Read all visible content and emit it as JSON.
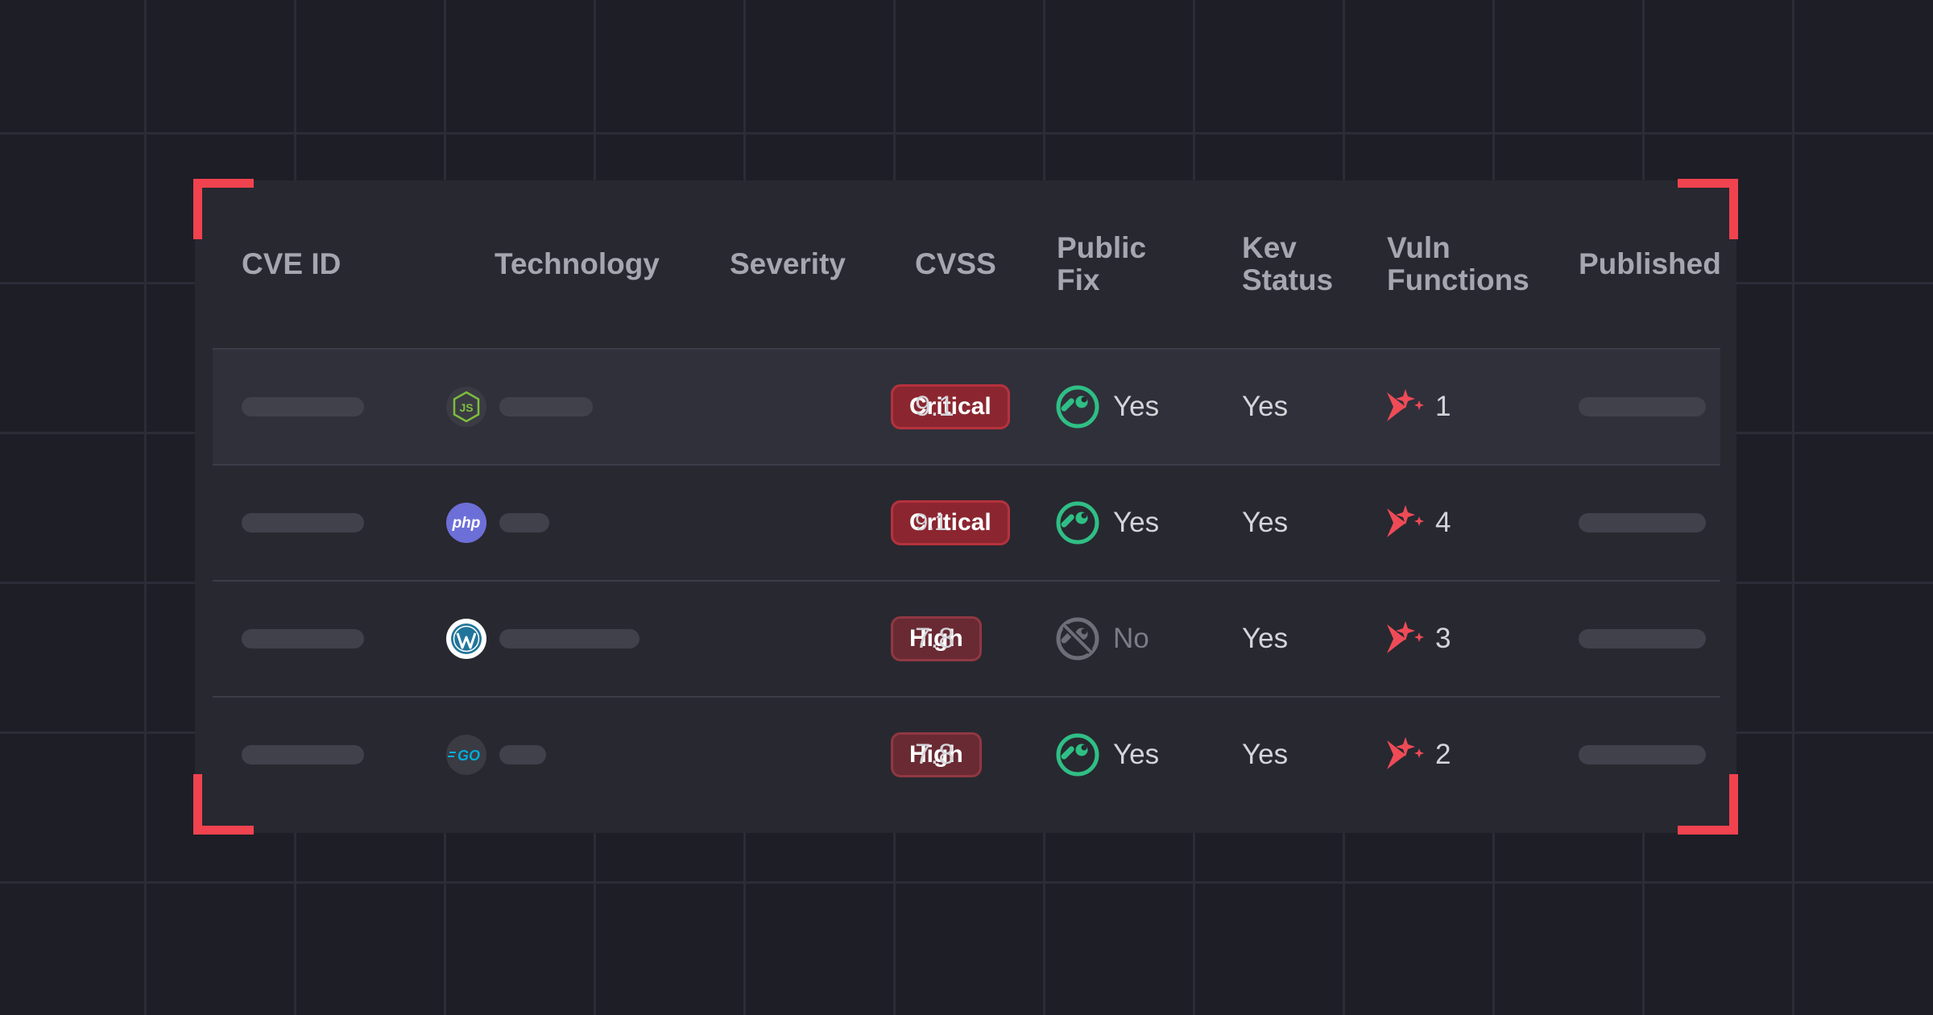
{
  "table": {
    "headers": {
      "cve_id": "CVE ID",
      "technology": "Technology",
      "severity": "Severity",
      "cvss": "CVSS",
      "public_fix": [
        "Public",
        "Fix"
      ],
      "kev_status": [
        "Kev",
        "Status"
      ],
      "vuln_functions": [
        "Vuln",
        "Functions"
      ],
      "published": "Published"
    },
    "rows": [
      {
        "technology_icon": "nodejs-icon",
        "severity": "Critical",
        "cvss": "9.1",
        "public_fix": "Yes",
        "kev_status": "Yes",
        "vuln_functions": "1"
      },
      {
        "technology_icon": "php-icon",
        "technology_icon_text": "php",
        "severity": "Critical",
        "cvss": "9.1",
        "public_fix": "Yes",
        "kev_status": "Yes",
        "vuln_functions": "4"
      },
      {
        "technology_icon": "wordpress-icon",
        "severity": "High",
        "cvss": "7.8",
        "public_fix": "No",
        "kev_status": "Yes",
        "vuln_functions": "3"
      },
      {
        "technology_icon": "go-icon",
        "technology_icon_text": "GO",
        "severity": "High",
        "cvss": "7.8",
        "public_fix": "Yes",
        "kev_status": "Yes",
        "vuln_functions": "2"
      }
    ]
  },
  "colors": {
    "background": "#1e1e27",
    "panel": "#282830",
    "corner_accent": "#f0434f",
    "critical_badge": "#8b2630",
    "high_badge": "#6a2a33",
    "fix_yes": "#2fbf85",
    "fix_no": "#6e6e78",
    "sparkle": "#ee4b57"
  },
  "icons": [
    "wrench-icon",
    "no-fix-icon",
    "sparkle-icon",
    "nodejs-icon",
    "php-icon",
    "wordpress-icon",
    "go-icon"
  ]
}
